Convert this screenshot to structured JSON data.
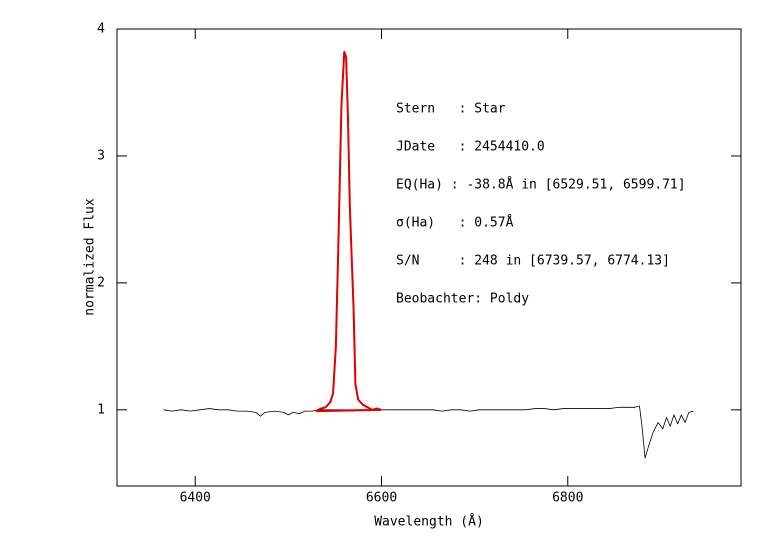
{
  "chart_data": {
    "type": "line",
    "xlabel": "Wavelength (Å)",
    "ylabel": "normalized Flux",
    "xlim": [
      6316,
      6986
    ],
    "ylim": [
      0.4,
      4.0
    ],
    "xticks": [
      6400,
      6600,
      6800
    ],
    "yticks": [
      1,
      2,
      3,
      4
    ],
    "annotations": [
      "Stern   : Star",
      "JDate   : 2454410.0",
      "EQ(Ha) : -38.8Å in [6529.51, 6599.71]",
      "σ(Ha)   : 0.57Å",
      "S/N     : 248 in [6739.57, 6774.13]",
      "Beobachter: Poldy"
    ],
    "series": [
      {
        "color": "#000000",
        "width": 0.8,
        "x": [
          6366,
          6375,
          6385,
          6395,
          6405,
          6415,
          6425,
          6435,
          6445,
          6455,
          6465,
          6470,
          6475,
          6485,
          6495,
          6500,
          6505,
          6512,
          6518,
          6525,
          6535,
          6545,
          6555,
          6565,
          6575,
          6585,
          6595,
          6605,
          6615,
          6625,
          6635,
          6645,
          6655,
          6665,
          6675,
          6685,
          6695,
          6705,
          6715,
          6725,
          6735,
          6745,
          6755,
          6765,
          6775,
          6785,
          6795,
          6805,
          6815,
          6825,
          6835,
          6845,
          6855,
          6865,
          6872,
          6877,
          6880,
          6883,
          6887,
          6892,
          6897,
          6902,
          6906,
          6910,
          6914,
          6918,
          6922,
          6926,
          6930,
          6935
        ],
        "values": [
          1.0,
          0.99,
          1.0,
          0.99,
          1.0,
          1.01,
          1.0,
          1.0,
          0.99,
          0.99,
          0.98,
          0.95,
          0.98,
          0.99,
          0.98,
          0.96,
          0.98,
          0.97,
          0.99,
          0.99,
          1.0,
          1.0,
          1.0,
          1.0,
          1.0,
          1.0,
          1.0,
          1.0,
          1.0,
          1.0,
          1.0,
          1.0,
          1.0,
          0.99,
          1.0,
          1.0,
          0.99,
          1.0,
          1.0,
          1.0,
          1.0,
          1.0,
          1.0,
          1.01,
          1.01,
          1.0,
          1.01,
          1.01,
          1.01,
          1.01,
          1.01,
          1.01,
          1.02,
          1.02,
          1.02,
          1.03,
          0.85,
          0.62,
          0.72,
          0.83,
          0.9,
          0.85,
          0.94,
          0.87,
          0.96,
          0.89,
          0.96,
          0.9,
          0.98,
          0.99
        ]
      },
      {
        "color": "#e00000",
        "width": 2,
        "x": [
          6529.5,
          6535,
          6540,
          6545,
          6548,
          6551,
          6554,
          6557,
          6560,
          6562,
          6564,
          6566,
          6568,
          6570,
          6572,
          6575,
          6580,
          6585,
          6590,
          6595,
          6599.7
        ],
        "values": [
          0.99,
          1.01,
          1.02,
          1.06,
          1.13,
          1.5,
          2.4,
          3.4,
          3.82,
          3.78,
          3.3,
          2.6,
          2.2,
          1.8,
          1.2,
          1.08,
          1.04,
          1.02,
          1.0,
          1.01,
          1.0
        ]
      },
      {
        "color": "#e00000",
        "width": 2,
        "x": [
          6529.51,
          6599.71
        ],
        "values": [
          0.99,
          1.0
        ]
      }
    ]
  }
}
